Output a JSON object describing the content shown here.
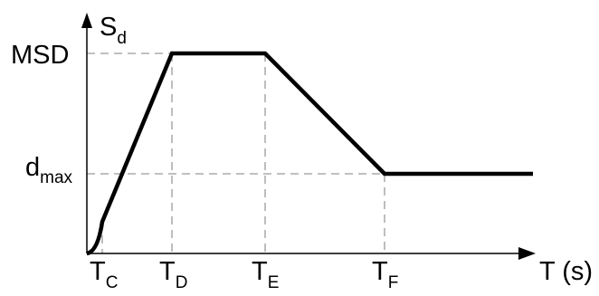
{
  "chart_data": {
    "type": "line",
    "x_axis": {
      "label_main": "T",
      "label_unit": " (s)"
    },
    "y_axis": {
      "label_main": "S",
      "label_sub": "d"
    },
    "x_ticks": [
      {
        "key": "tc",
        "main": "T",
        "sub": "C"
      },
      {
        "key": "td",
        "main": "T",
        "sub": "D"
      },
      {
        "key": "te",
        "main": "T",
        "sub": "E"
      },
      {
        "key": "tf",
        "main": "T",
        "sub": "F"
      }
    ],
    "y_ticks": [
      {
        "key": "msd",
        "main": "MSD",
        "sub": ""
      },
      {
        "key": "dmax",
        "main": "d",
        "sub": "max"
      }
    ],
    "series": [
      {
        "color": "#000000",
        "dashed_guides": true
      }
    ],
    "colors": {
      "curve": "#000000",
      "guides": "#9a9a9a",
      "axes": "#000000"
    }
  }
}
